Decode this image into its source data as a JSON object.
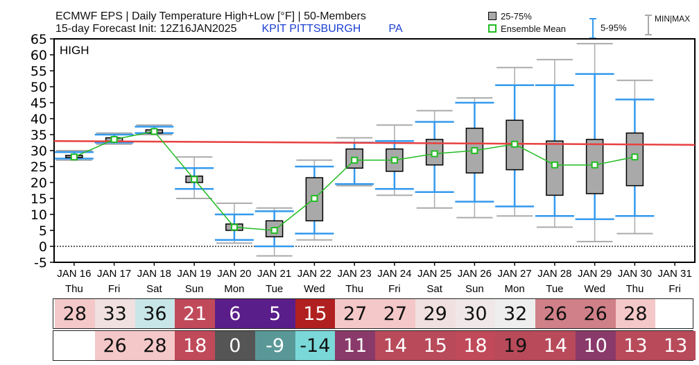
{
  "header": {
    "line1": "ECMWF EPS | Daily Temperature High+Low [°F] | 50-Members",
    "line2": "15-day Forecast Init: 12Z16JAN2025",
    "location": "KPIT PITTSBURGH",
    "state": "PA"
  },
  "legend": {
    "box": "25-75%",
    "mean": "Ensemble Mean",
    "whisker": "5-95%",
    "minmax": "MIN|MAX"
  },
  "colors": {
    "box_fill": "#a9a9a9",
    "mean_marker": "#22bb22",
    "mean_line": "#22bb22",
    "p5_95": "#3399ee",
    "minmax": "#aaaaaa",
    "ref_line": "#e84040"
  },
  "chart_data": {
    "type": "box",
    "panel_label": "HIGH",
    "ylim": [
      -5,
      65
    ],
    "yticks": [
      -5,
      0,
      5,
      10,
      15,
      20,
      25,
      30,
      35,
      40,
      45,
      50,
      55,
      60,
      65
    ],
    "reference_line": {
      "from": 33,
      "to": 31.8
    },
    "dates": [
      "JAN 16",
      "JAN 17",
      "JAN 18",
      "JAN 19",
      "JAN 20",
      "JAN 21",
      "JAN 22",
      "JAN 23",
      "JAN 24",
      "JAN 25",
      "JAN 26",
      "JAN 27",
      "JAN 28",
      "JAN 29",
      "JAN 30",
      "JAN 31"
    ],
    "days": [
      "Thu",
      "Fri",
      "Sat",
      "Sun",
      "Mon",
      "Tue",
      "Wed",
      "Thu",
      "Fri",
      "Sat",
      "Sun",
      "Mon",
      "Tue",
      "Wed",
      "Thu",
      "Fri"
    ],
    "boxes": [
      {
        "min": 27,
        "p5": 27.5,
        "q1": 27.8,
        "mean": 28,
        "q3": 28.5,
        "p95": 29.5,
        "max": 30
      },
      {
        "min": 32,
        "p5": 32.5,
        "q1": 33,
        "mean": 33.5,
        "q3": 34,
        "p95": 35,
        "max": 35.5
      },
      {
        "min": 35,
        "p5": 35.5,
        "q1": 35.5,
        "mean": 36,
        "q3": 36.5,
        "p95": 37.5,
        "max": 38
      },
      {
        "min": 15,
        "p5": 18,
        "q1": 20,
        "mean": 21,
        "q3": 22,
        "p95": 24.5,
        "max": 28
      },
      {
        "min": 1,
        "p5": 2,
        "q1": 5,
        "mean": 6,
        "q3": 7,
        "p95": 10,
        "max": 13.5
      },
      {
        "min": -3,
        "p5": 0,
        "q1": 3,
        "mean": 5,
        "q3": 8,
        "p95": 11,
        "max": 12
      },
      {
        "min": 2,
        "p5": 4,
        "q1": 8,
        "mean": 15,
        "q3": 21.5,
        "p95": 25,
        "max": 27
      },
      {
        "min": 19,
        "p5": 19.5,
        "q1": 24.5,
        "mean": 27,
        "q3": 30.5,
        "p95": 32.5,
        "max": 34
      },
      {
        "min": 16,
        "p5": 18,
        "q1": 23.5,
        "mean": 27,
        "q3": 30.5,
        "p95": 33,
        "max": 38
      },
      {
        "min": 12,
        "p5": 17,
        "q1": 25.5,
        "mean": 29,
        "q3": 33.5,
        "p95": 39,
        "max": 42.5
      },
      {
        "min": 9,
        "p5": 14,
        "q1": 23,
        "mean": 30,
        "q3": 37,
        "p95": 45,
        "max": 46.5
      },
      {
        "min": 9.5,
        "p5": 12.5,
        "q1": 24,
        "mean": 32,
        "q3": 39.5,
        "p95": 50.5,
        "max": 56
      },
      {
        "min": 6,
        "p5": 9.5,
        "q1": 16,
        "mean": 25.5,
        "q3": 33,
        "p95": 50.5,
        "max": 58.5
      },
      {
        "min": 1.5,
        "p5": 8.5,
        "q1": 16.5,
        "mean": 25.5,
        "q3": 33.5,
        "p95": 54,
        "max": 63.5
      },
      {
        "min": 4,
        "p5": 9.5,
        "q1": 19,
        "mean": 28,
        "q3": 35.5,
        "p95": 46,
        "max": 52
      }
    ],
    "high_values": [
      28,
      33,
      36,
      21,
      6,
      5,
      15,
      27,
      27,
      29,
      30,
      32,
      26,
      26,
      28
    ],
    "high_colors": [
      "#f4c8c8",
      "#f0e0e0",
      "#c8e6e8",
      "#c04a5a",
      "#5a1e8a",
      "#5a1e8a",
      "#b02020",
      "#f4c8c8",
      "#f4c8c8",
      "#f0e0e0",
      "#f0e8e8",
      "#eeeeee",
      "#d08088",
      "#d08088",
      "#f4c8c8"
    ],
    "low_values": [
      26,
      28,
      18,
      0,
      -9,
      -14,
      11,
      14,
      15,
      18,
      19,
      14,
      10,
      13,
      13
    ],
    "low_colors": [
      "#f4c8c8",
      "#f4c8c8",
      "#c04a5a",
      "#555555",
      "#5a9898",
      "#7ad8d8",
      "#8a3a6a",
      "#b84a5a",
      "#b84a5a",
      "#c04a5a",
      "#b84a5a",
      "#b84a5a",
      "#8a3a6a",
      "#b84a5a",
      "#b84a5a"
    ],
    "low_white_text": [
      false,
      false,
      true,
      true,
      true,
      false,
      true,
      true,
      true,
      true,
      false,
      true,
      true,
      true,
      true
    ]
  }
}
